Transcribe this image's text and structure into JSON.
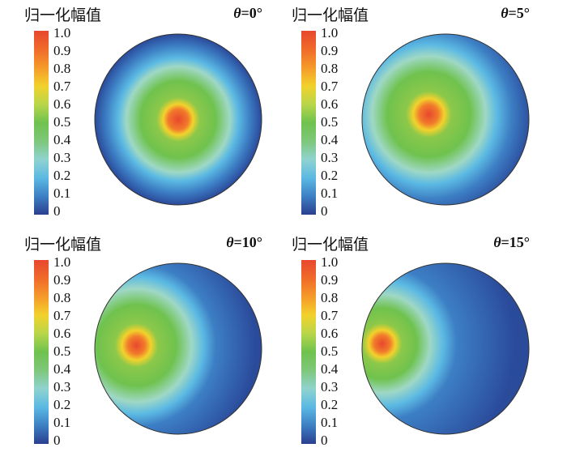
{
  "panels": [
    {
      "legend_title": "归一化幅值",
      "theta_symbol": "θ",
      "theta_value": "=0°"
    },
    {
      "legend_title": "归一化幅值",
      "theta_symbol": "θ",
      "theta_value": "=5°"
    },
    {
      "legend_title": "归一化幅值",
      "theta_symbol": "θ",
      "theta_value": "=10°"
    },
    {
      "legend_title": "归一化幅值",
      "theta_symbol": "θ",
      "theta_value": "=15°"
    }
  ],
  "colorbar_ticks": [
    "1.0",
    "0.9",
    "0.8",
    "0.7",
    "0.6",
    "0.5",
    "0.4",
    "0.3",
    "0.2",
    "0.1",
    "0"
  ],
  "colors": {
    "peak": "#e8472e",
    "orange": "#f59a2a",
    "yellow": "#f2d22c",
    "green": "#6fc24e",
    "cyan": "#8fd3cf",
    "blue": "#3d7fc4",
    "deep_blue": "#2a3f8f"
  }
}
